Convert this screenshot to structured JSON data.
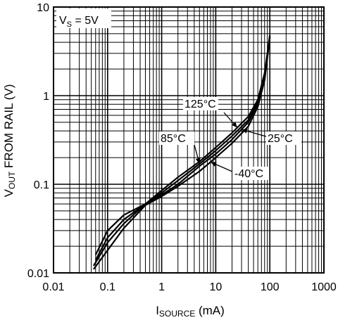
{
  "chart_data": {
    "type": "line",
    "annotation": {
      "prefix": "V",
      "sub": "S",
      "suffix": " = 5V"
    },
    "xlabel": {
      "prefix": "I",
      "sub": "SOURCE",
      "suffix": " (mA)"
    },
    "ylabel": {
      "prefix": "V",
      "sub": "OUT",
      "suffix": " FROM RAIL (V)"
    },
    "x_scale": "log",
    "y_scale": "log",
    "xlim": [
      0.01,
      1000
    ],
    "ylim": [
      0.01,
      10
    ],
    "grid": true,
    "x_ticks": [
      "0.01",
      "0.1",
      "1",
      "10",
      "100",
      "1000"
    ],
    "y_ticks": [
      "0.01",
      "0.1",
      "1",
      "10"
    ],
    "series": [
      {
        "name": "125°C",
        "x": [
          0.06,
          0.1,
          0.2,
          0.5,
          1,
          2,
          5,
          10,
          20,
          40,
          60,
          80,
          90,
          100
        ],
        "y": [
          0.016,
          0.03,
          0.045,
          0.06,
          0.085,
          0.12,
          0.18,
          0.26,
          0.38,
          0.58,
          0.9,
          1.8,
          3.0,
          4.8
        ]
      },
      {
        "name": "85°C",
        "x": [
          0.06,
          0.1,
          0.2,
          0.5,
          1,
          2,
          5,
          10,
          20,
          40,
          60,
          80,
          90,
          100
        ],
        "y": [
          0.014,
          0.025,
          0.04,
          0.06,
          0.08,
          0.11,
          0.17,
          0.24,
          0.35,
          0.53,
          0.85,
          1.7,
          2.9,
          4.7
        ]
      },
      {
        "name": "25°C",
        "x": [
          0.055,
          0.1,
          0.2,
          0.5,
          1,
          2,
          5,
          10,
          20,
          40,
          60,
          80,
          90,
          100
        ],
        "y": [
          0.012,
          0.022,
          0.036,
          0.06,
          0.076,
          0.1,
          0.16,
          0.22,
          0.32,
          0.5,
          0.8,
          1.6,
          2.8,
          4.6
        ]
      },
      {
        "name": "-40°C",
        "x": [
          0.055,
          0.1,
          0.2,
          0.5,
          1,
          2,
          5,
          10,
          20,
          40,
          60,
          80,
          90,
          100
        ],
        "y": [
          0.011,
          0.018,
          0.032,
          0.058,
          0.073,
          0.095,
          0.14,
          0.2,
          0.29,
          0.45,
          0.75,
          1.5,
          2.7,
          4.5
        ]
      }
    ],
    "labels": [
      {
        "text": "125°C",
        "series": "125°C"
      },
      {
        "text": "85°C",
        "series": "85°C"
      },
      {
        "text": "25°C",
        "series": "25°C"
      },
      {
        "text": "-40°C",
        "series": "-40°C"
      }
    ]
  }
}
